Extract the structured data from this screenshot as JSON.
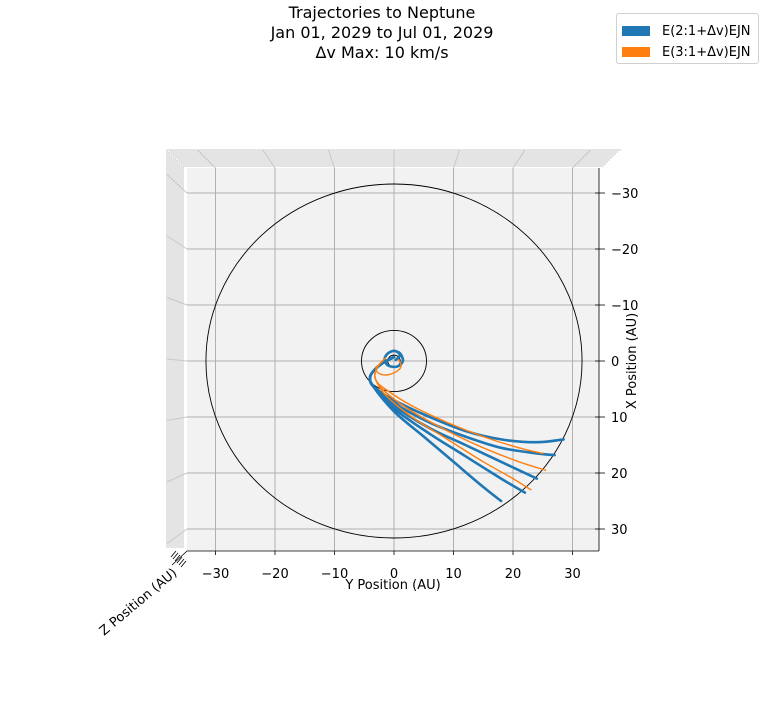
{
  "chart_data": {
    "type": "line",
    "title": [
      "Trajectories to Neptune",
      "Jan 01, 2029 to Jul 01, 2029",
      "Δv Max: 10 km/s"
    ],
    "xlabel": "Y Position (AU)",
    "ylabel": "X Position (AU)",
    "zlabel": "Z Position (AU)",
    "y_axis_ticks": [
      -30,
      -20,
      -10,
      0,
      10,
      20,
      30
    ],
    "x_axis_ticks": [
      30,
      20,
      10,
      0,
      10,
      20,
      30
    ],
    "axis_range": [
      -35,
      35
    ],
    "grid": true,
    "legend_position": "top-right",
    "orbits": [
      {
        "name": "",
        "radius": 1.0
      },
      {
        "name": "",
        "radius": 5.2
      },
      {
        "name": "",
        "radius": 30.1
      }
    ],
    "series": [
      {
        "name": "E(2:1+Δv)EJN",
        "color": "#1f77b4",
        "trajectories": [
          [
            [
              0,
              -0.7
            ],
            [
              -1.8,
              0.3
            ],
            [
              -3.2,
              1.5
            ],
            [
              -4,
              2.8
            ],
            [
              -3.5,
              4.5
            ],
            [
              0,
              7
            ],
            [
              6,
              10
            ],
            [
              12,
              12.5
            ],
            [
              18,
              14
            ],
            [
              24,
              14.5
            ],
            [
              28.5,
              14
            ]
          ],
          [
            [
              0,
              -0.7
            ],
            [
              -1.8,
              0.3
            ],
            [
              -3.2,
              1.5
            ],
            [
              -4,
              2.8
            ],
            [
              -3.5,
              4.5
            ],
            [
              0,
              7.5
            ],
            [
              6,
              11
            ],
            [
              12,
              13.5
            ],
            [
              18,
              15.5
            ],
            [
              24,
              16.5
            ],
            [
              27,
              16.8
            ]
          ],
          [
            [
              0,
              -0.7
            ],
            [
              -1.8,
              0.3
            ],
            [
              -3.2,
              1.5
            ],
            [
              -4,
              2.8
            ],
            [
              -3.5,
              4.5
            ],
            [
              0,
              8
            ],
            [
              6,
              12
            ],
            [
              12,
              15
            ],
            [
              18,
              18
            ],
            [
              24,
              21
            ]
          ],
          [
            [
              0,
              -0.7
            ],
            [
              -1.8,
              0.3
            ],
            [
              -3.2,
              1.5
            ],
            [
              -4,
              2.8
            ],
            [
              -3.5,
              4.5
            ],
            [
              0,
              8.5
            ],
            [
              6,
              13
            ],
            [
              12,
              17
            ],
            [
              18,
              21
            ],
            [
              22,
              23.5
            ]
          ],
          [
            [
              0,
              -0.7
            ],
            [
              -1.8,
              0.3
            ],
            [
              -3.2,
              1.5
            ],
            [
              -4,
              2.8
            ],
            [
              -3.5,
              4.5
            ],
            [
              0,
              9
            ],
            [
              5,
              13.5
            ],
            [
              10,
              18
            ],
            [
              15,
              22.5
            ],
            [
              18,
              25
            ]
          ],
          [
            [
              0.3,
              -0.2
            ],
            [
              1,
              -1
            ],
            [
              0.2,
              -1.8
            ],
            [
              -1,
              -1.4
            ],
            [
              -1.6,
              -0.3
            ],
            [
              -1,
              0.8
            ],
            [
              0.5,
              1
            ],
            [
              1.5,
              0
            ],
            [
              1,
              -1.4
            ],
            [
              0,
              -1.8
            ]
          ]
        ]
      },
      {
        "name": "E(3:1+Δv)EJN",
        "color": "#ff7f0e",
        "trajectories": [
          [
            [
              -1.5,
              -0.5
            ],
            [
              -2.6,
              0.8
            ],
            [
              -3.2,
              2.2
            ],
            [
              -3,
              3.5
            ],
            [
              -1.5,
              5
            ],
            [
              3,
              8
            ],
            [
              9,
              11
            ],
            [
              15,
              13.5
            ],
            [
              21,
              15.5
            ],
            [
              25,
              16.5
            ]
          ],
          [
            [
              -1.5,
              -0.5
            ],
            [
              -2.6,
              0.8
            ],
            [
              -3.2,
              2.2
            ],
            [
              -3,
              3.5
            ],
            [
              -1.5,
              5.5
            ],
            [
              3,
              9
            ],
            [
              9,
              12.5
            ],
            [
              15,
              15.5
            ],
            [
              21,
              18
            ],
            [
              25.5,
              19.5
            ]
          ],
          [
            [
              -1.5,
              -0.5
            ],
            [
              -2.6,
              0.8
            ],
            [
              -3.2,
              2.2
            ],
            [
              -3,
              3.5
            ],
            [
              -1.5,
              6
            ],
            [
              3,
              10
            ],
            [
              9,
              14
            ],
            [
              15,
              18
            ],
            [
              20,
              21
            ],
            [
              23,
              23
            ]
          ],
          [
            [
              0.8,
              -0.2
            ],
            [
              1.2,
              1
            ],
            [
              0.2,
              2
            ],
            [
              -1.5,
              2.5
            ],
            [
              -2.8,
              2
            ],
            [
              -3,
              1
            ]
          ]
        ]
      }
    ]
  }
}
